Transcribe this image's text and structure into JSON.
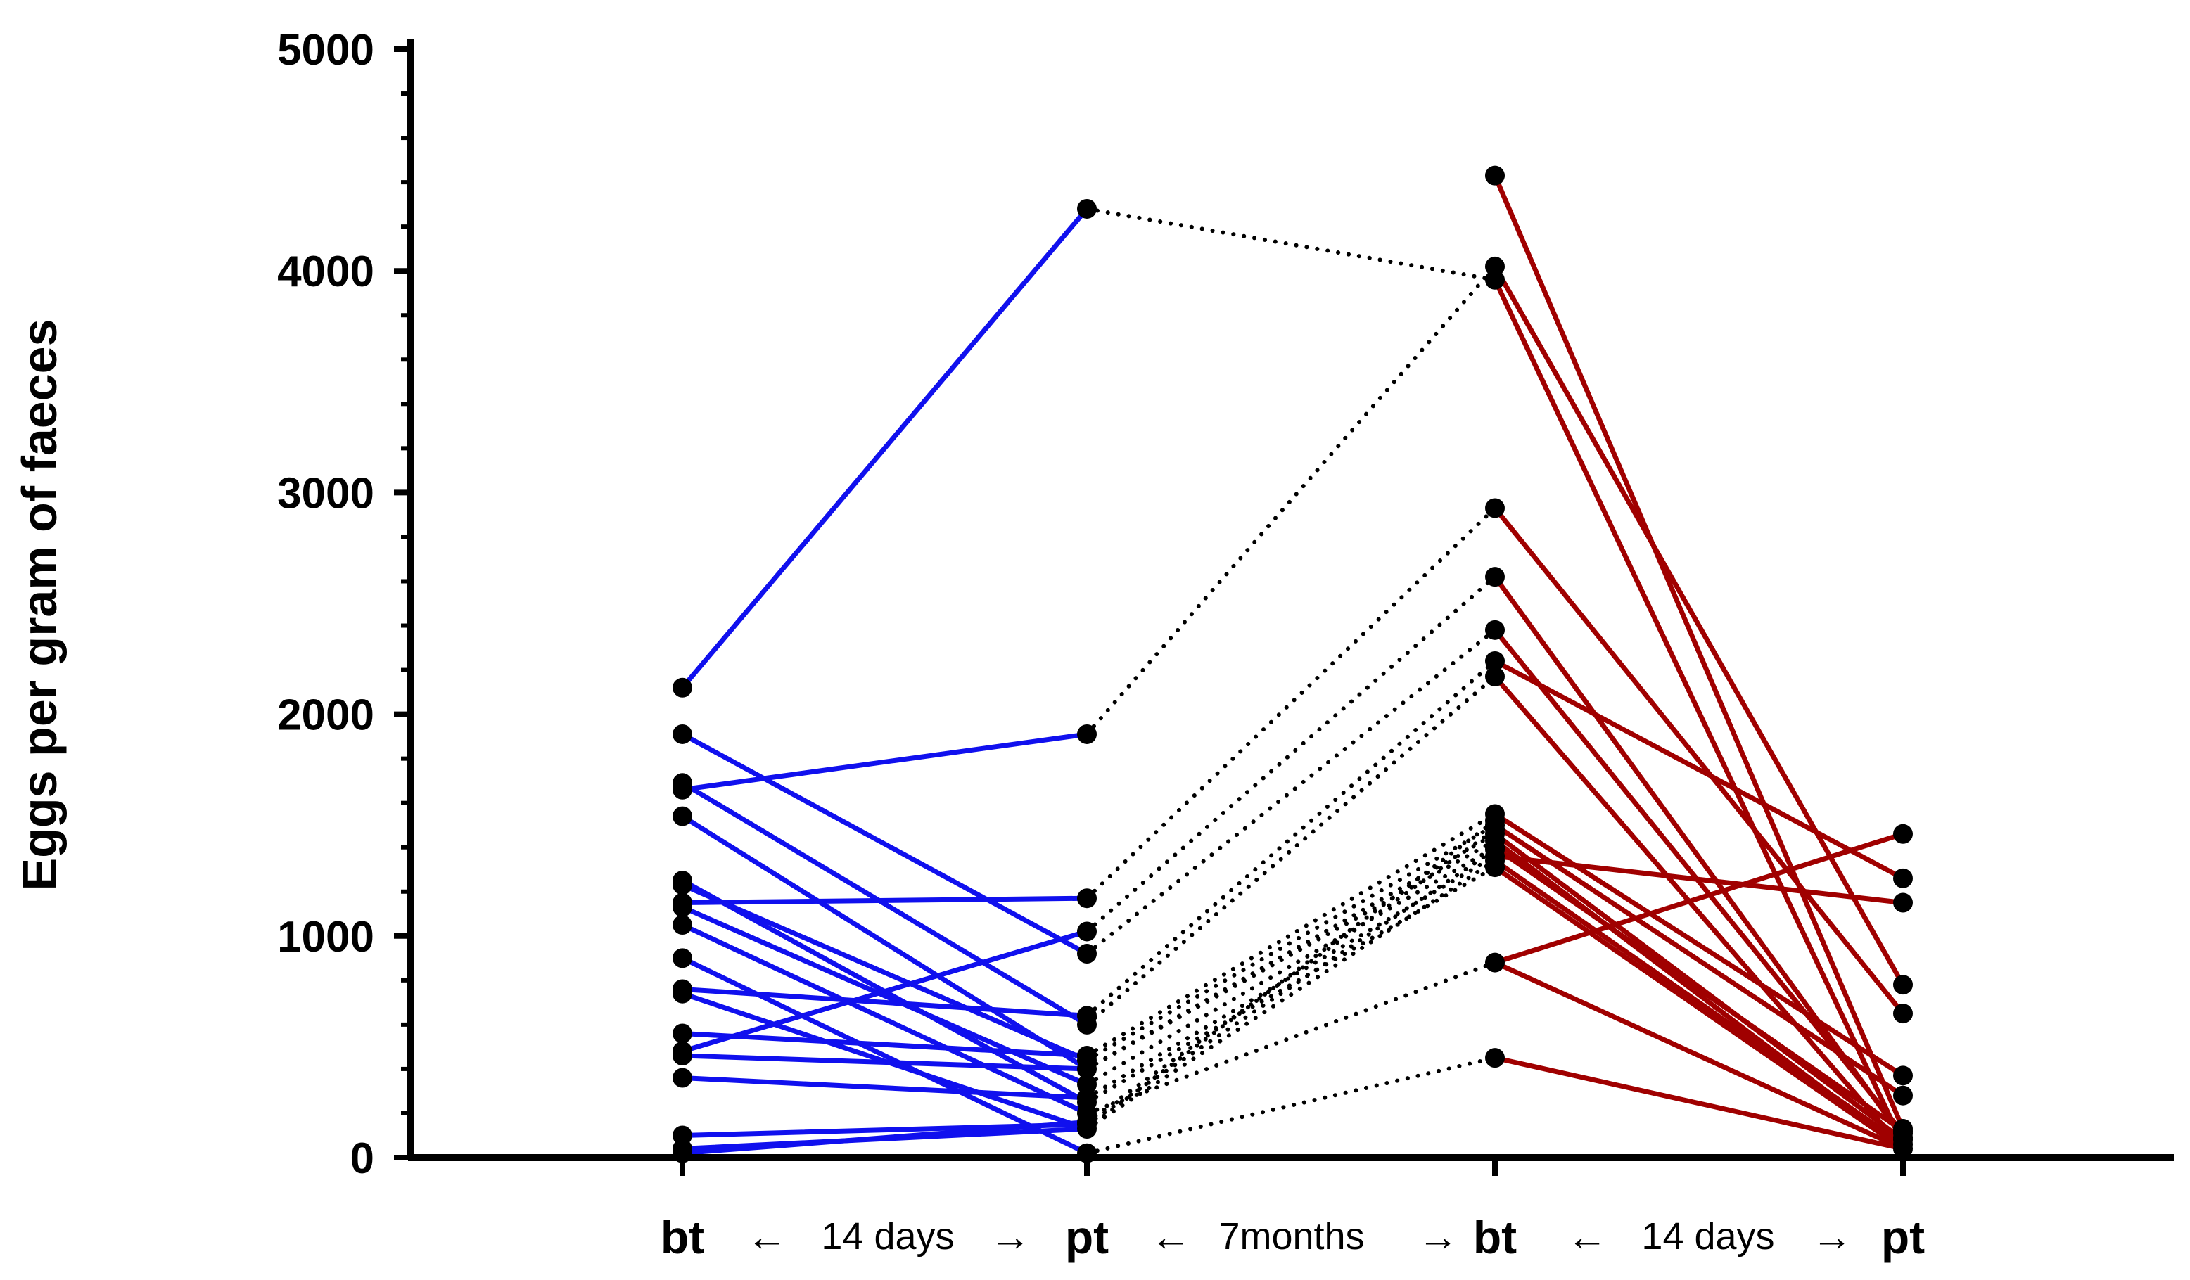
{
  "chart_data": {
    "type": "line",
    "title": "",
    "ylabel": "Eggs per gram of faeces",
    "xlabel": "",
    "ylim": [
      0,
      5000
    ],
    "yticks": [
      0,
      1000,
      2000,
      3000,
      4000,
      5000
    ],
    "ytick_labels": [
      "0",
      "1000",
      "2000",
      "3000",
      "4000",
      "5000"
    ],
    "categories": [
      "bt",
      "pt",
      "bt",
      "pt"
    ],
    "period_labels": [
      {
        "text": "14 days",
        "left_arrow": "←",
        "right_arrow": "→"
      },
      {
        "text": "7months",
        "left_arrow": "←",
        "right_arrow": "→"
      },
      {
        "text": "14 days",
        "left_arrow": "←",
        "right_arrow": "→"
      }
    ],
    "colors": {
      "first_treatment": "#1010ee",
      "second_treatment": "#a00000",
      "interval": "#000000",
      "points": "#000000"
    },
    "first_treatment_pairs": [
      [
        2120,
        4280
      ],
      [
        1910,
        920
      ],
      [
        1690,
        600
      ],
      [
        1660,
        1910
      ],
      [
        1540,
        400
      ],
      [
        1250,
        250
      ],
      [
        1230,
        440
      ],
      [
        1150,
        1170
      ],
      [
        1130,
        330
      ],
      [
        1050,
        200
      ],
      [
        900,
        20
      ],
      [
        760,
        640
      ],
      [
        740,
        130
      ],
      [
        560,
        460
      ],
      [
        480,
        1020
      ],
      [
        460,
        400
      ],
      [
        360,
        270
      ],
      [
        100,
        150
      ],
      [
        40,
        130
      ],
      [
        20,
        160
      ]
    ],
    "interval_pairs": [
      [
        4280,
        3960
      ],
      [
        1910,
        4020
      ],
      [
        1170,
        2930
      ],
      [
        1020,
        2620
      ],
      [
        920,
        2380
      ],
      [
        640,
        2240
      ],
      [
        600,
        2170
      ],
      [
        460,
        1550
      ],
      [
        440,
        1500
      ],
      [
        400,
        1460
      ],
      [
        400,
        1430
      ],
      [
        330,
        1400
      ],
      [
        270,
        1360
      ],
      [
        250,
        1310
      ],
      [
        200,
        880
      ],
      [
        160,
        1480
      ],
      [
        150,
        1390
      ],
      [
        130,
        1520
      ],
      [
        130,
        1340
      ],
      [
        20,
        450
      ]
    ],
    "second_treatment_pairs": [
      [
        4430,
        130
      ],
      [
        4020,
        780
      ],
      [
        3960,
        60
      ],
      [
        2930,
        650
      ],
      [
        2620,
        90
      ],
      [
        2380,
        110
      ],
      [
        2240,
        1260
      ],
      [
        2170,
        40
      ],
      [
        1550,
        370
      ],
      [
        1500,
        280
      ],
      [
        1460,
        80
      ],
      [
        1430,
        40
      ],
      [
        1400,
        120
      ],
      [
        1360,
        1150
      ],
      [
        1340,
        60
      ],
      [
        1310,
        40
      ],
      [
        880,
        1460
      ],
      [
        880,
        40
      ],
      [
        450,
        40
      ]
    ]
  }
}
